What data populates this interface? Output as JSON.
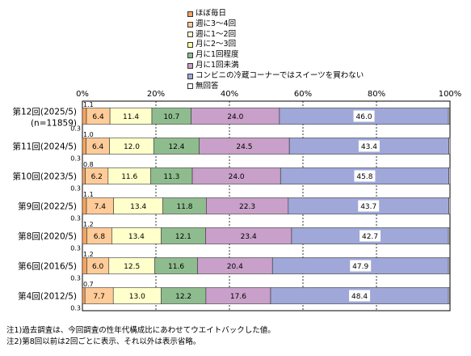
{
  "chart_data": {
    "type": "bar",
    "orientation": "horizontal",
    "stacked": true,
    "percent": true,
    "xlim": [
      0,
      100
    ],
    "ticks": [
      "0%",
      "20%",
      "40%",
      "60%",
      "80%",
      "100%"
    ],
    "tick_values": [
      0,
      20,
      40,
      60,
      80,
      100
    ],
    "grid": true,
    "legend_position": "top",
    "categories": [
      [
        "第12回(2025/5)",
        "(n=11859)"
      ],
      [
        "第11回(2024/5)"
      ],
      [
        "第10回(2023/5)"
      ],
      [
        "第9回(2022/5)"
      ],
      [
        "第8回(2020/5)"
      ],
      [
        "第6回(2016/5)"
      ],
      [
        "第4回(2012/5)"
      ]
    ],
    "series": [
      {
        "name": "ほぼ毎日",
        "color": "#f4a460",
        "values": [
          1.1,
          1.0,
          0.8,
          1.1,
          1.2,
          1.2,
          0.7
        ],
        "labels": [
          "1.1",
          "1.0",
          "0.8",
          "1.1",
          "1.2",
          "1.2",
          "0.7"
        ]
      },
      {
        "name": "週に3～4回",
        "color": "#ffcc99",
        "values": [
          6.4,
          6.4,
          6.2,
          7.4,
          6.8,
          6.0,
          7.7
        ],
        "labels": [
          "6.4",
          "6.4",
          "6.2",
          "7.4",
          "6.8",
          "6.0",
          "7.7"
        ]
      },
      {
        "name": "週に1～2回",
        "color": "#ffffcc",
        "values": [
          11.4,
          12.0,
          11.6,
          13.4,
          13.4,
          12.5,
          13.0
        ],
        "labels": [
          "11.4",
          "12.0",
          "11.6",
          "13.4",
          "13.4",
          "12.5",
          "13.0"
        ]
      },
      {
        "name": "月に2～3回",
        "color": "#ffff99",
        "values": [
          0,
          0,
          0,
          0,
          0,
          0,
          0
        ],
        "labels": [
          "",
          "",
          "",
          "",
          "",
          "",
          ""
        ]
      },
      {
        "name": "月に1回程度",
        "color": "#8fbc8f",
        "values": [
          10.7,
          12.4,
          11.3,
          11.8,
          12.1,
          11.6,
          12.2
        ],
        "labels": [
          "10.7",
          "12.4",
          "11.3",
          "11.8",
          "12.1",
          "11.6",
          "12.2"
        ]
      },
      {
        "name": "月に1回未満",
        "color": "#c9a0c9",
        "values": [
          24.0,
          24.5,
          24.0,
          22.3,
          23.4,
          20.4,
          17.6
        ],
        "labels": [
          "24.0",
          "24.5",
          "24.0",
          "22.3",
          "23.4",
          "20.4",
          "17.6"
        ]
      },
      {
        "name": "コンビニの冷蔵コーナーではスイーツを買わない",
        "color": "#9fa8d8",
        "values": [
          46.0,
          43.4,
          45.8,
          43.7,
          42.7,
          47.9,
          48.4
        ],
        "labels": [
          "46.0",
          "43.4",
          "45.8",
          "43.7",
          "42.7",
          "47.9",
          "48.4"
        ]
      },
      {
        "name": "無回答",
        "color": "#ffffff",
        "values": [
          0.3,
          0.3,
          0.3,
          0.3,
          0.3,
          0.3,
          0.3
        ],
        "labels": [
          "0.3",
          "0.3",
          "0.3",
          "0.3",
          "0.3",
          "0.3",
          "0.3"
        ]
      }
    ]
  },
  "notes": [
    "注1)過去調査は、今回調査の性年代構成比にあわせてウエイトバックした値。",
    "注2)第8回以前は2回ごとに表示、それ以外は表示省略。"
  ]
}
